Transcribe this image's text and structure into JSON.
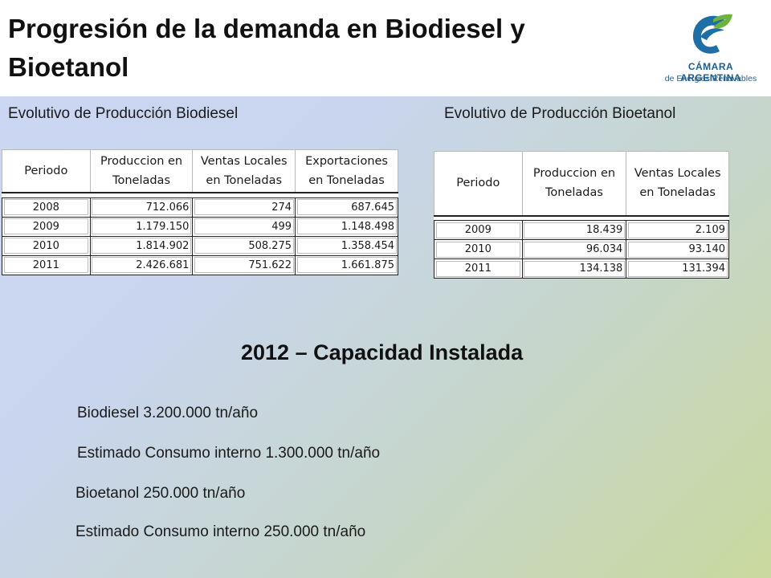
{
  "header": {
    "title": "Progresión de la demanda en Biodiesel y Bioetanol",
    "logo": {
      "icon": "e-leaf-logo-icon",
      "name": "CÁMARA ARGENTINA",
      "subtitle": "de Energias Renovables",
      "colors": {
        "blue": "#1d6fa5",
        "green": "#6db33f"
      }
    }
  },
  "biodiesel": {
    "subtitle": "Evolutivo de Producción Biodiesel",
    "headers": [
      "Periodo",
      "Produccion en Toneladas",
      "Ventas Locales en Toneladas",
      "Exportaciones en Toneladas"
    ],
    "rows": [
      [
        "2008",
        "712.066",
        "274",
        "687.645"
      ],
      [
        "2009",
        "1.179.150",
        "499",
        "1.148.498"
      ],
      [
        "2010",
        "1.814.902",
        "508.275",
        "1.358.454"
      ],
      [
        "2011",
        "2.426.681",
        "751.622",
        "1.661.875"
      ]
    ]
  },
  "bioetanol": {
    "subtitle": "Evolutivo de Producción Bioetanol",
    "headers": [
      "Periodo",
      "Produccion en Toneladas",
      "Ventas Locales en Toneladas"
    ],
    "rows": [
      [
        "2009",
        "18.439",
        "2.109"
      ],
      [
        "2010",
        "96.034",
        "93.140"
      ],
      [
        "2011",
        "134.138",
        "131.394"
      ]
    ]
  },
  "capacity": {
    "title": "2012 – Capacidad Instalada",
    "items": [
      "Biodiesel 3.200.000 tn/año",
      "Estimado Consumo interno 1.300.000 tn/año",
      "Bioetanol 250.000 tn/año",
      "Estimado Consumo interno 250.000 tn/año"
    ]
  }
}
